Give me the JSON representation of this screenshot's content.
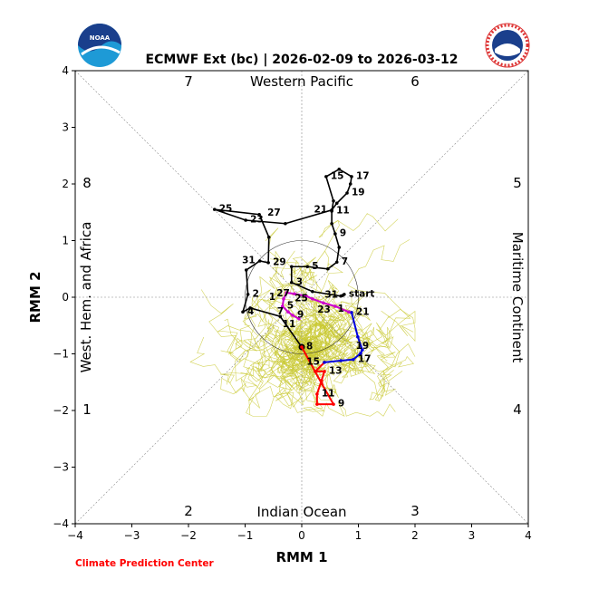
{
  "chart_data": {
    "type": "line",
    "title": "ECMWF Ext (bc) | 2026-02-09 to 2026-03-12",
    "xlabel": "RMM 1",
    "ylabel": "RMM 2",
    "xlim": [
      -4,
      4
    ],
    "ylim": [
      -4,
      4
    ],
    "xticks": [
      "−4",
      "−3",
      "−2",
      "−1",
      "0",
      "1",
      "2",
      "3",
      "4"
    ],
    "yticks": [
      "−4",
      "−3",
      "−2",
      "−1",
      "0",
      "1",
      "2",
      "3",
      "4"
    ],
    "phases": [
      "1",
      "2",
      "3",
      "4",
      "5",
      "6",
      "7",
      "8"
    ],
    "regions": {
      "top": "Western Pacific",
      "bottom": "Indian Ocean",
      "left": "West. Hem. and Africa",
      "right": "Maritime Continent"
    },
    "ensemble_members": 50,
    "colors": {
      "observed": "#000000",
      "week1": "#ff0000",
      "week2": "#0000dd",
      "week3": "#cc00cc",
      "ensemble": "#c8c830"
    },
    "series": [
      {
        "name": "observed",
        "points": [
          [
            0.75,
            0.05,
            "start"
          ],
          [
            0.72,
            0.03,
            "31"
          ],
          [
            0.69,
            0.02,
            "1"
          ],
          [
            0.19,
            0.1,
            ""
          ],
          [
            -0.18,
            0.26,
            "3"
          ],
          [
            -0.18,
            0.54,
            ""
          ],
          [
            0.1,
            0.54,
            "5"
          ],
          [
            0.46,
            0.5,
            ""
          ],
          [
            0.62,
            0.62,
            "7"
          ],
          [
            0.66,
            0.88,
            ""
          ],
          [
            0.59,
            1.12,
            "9"
          ],
          [
            0.53,
            1.3,
            ""
          ],
          [
            0.53,
            1.52,
            "11"
          ],
          [
            0.56,
            1.7,
            ""
          ],
          [
            0.43,
            2.13,
            "15"
          ],
          [
            0.66,
            2.26,
            ""
          ],
          [
            0.88,
            2.13,
            "17"
          ],
          [
            0.86,
            2.0,
            ""
          ],
          [
            0.8,
            1.84,
            "19"
          ],
          [
            0.62,
            1.66,
            ""
          ],
          [
            0.53,
            1.54,
            "21"
          ],
          [
            -0.29,
            1.3,
            ""
          ],
          [
            -0.99,
            1.36,
            "23"
          ],
          [
            -1.54,
            1.55,
            "25"
          ],
          [
            -0.75,
            1.46,
            "27"
          ],
          [
            -0.58,
            1.06,
            ""
          ],
          [
            -0.59,
            0.61,
            "29"
          ],
          [
            -0.74,
            0.64,
            "31"
          ],
          [
            -0.98,
            0.48,
            ""
          ],
          [
            -0.95,
            0.05,
            "2"
          ],
          [
            -1.04,
            -0.26,
            "4"
          ],
          [
            -0.91,
            -0.19,
            ""
          ],
          [
            -0.38,
            -0.34,
            ""
          ],
          [
            0.0,
            -0.88,
            "8"
          ]
        ]
      },
      {
        "name": "week1",
        "points": [
          [
            0.0,
            -0.88,
            ""
          ],
          [
            0.35,
            -1.52,
            ""
          ],
          [
            0.56,
            -1.89,
            "9"
          ],
          [
            0.27,
            -1.89,
            ""
          ],
          [
            0.27,
            -1.71,
            "11"
          ],
          [
            0.35,
            -1.47,
            ""
          ],
          [
            0.4,
            -1.31,
            "13"
          ],
          [
            0.24,
            -1.31,
            ""
          ],
          [
            0.4,
            -1.15,
            ""
          ]
        ]
      },
      {
        "name": "week2",
        "points": [
          [
            0.4,
            -1.15,
            "15"
          ],
          [
            0.69,
            -1.12,
            ""
          ],
          [
            0.91,
            -1.1,
            "17"
          ],
          [
            1.04,
            -0.99,
            ""
          ],
          [
            1.07,
            -0.93,
            "19"
          ],
          [
            0.99,
            -0.7,
            ""
          ],
          [
            0.88,
            -0.27,
            "21"
          ],
          [
            0.83,
            -0.26,
            ""
          ]
        ]
      },
      {
        "name": "week3",
        "points": [
          [
            0.83,
            -0.26,
            ""
          ],
          [
            0.59,
            -0.16,
            "23"
          ],
          [
            0.38,
            -0.1,
            ""
          ],
          [
            0.19,
            -0.03,
            "25"
          ],
          [
            0.08,
            0.02,
            ""
          ],
          [
            -0.13,
            0.06,
            "27"
          ],
          [
            -0.27,
            0.08,
            ""
          ],
          [
            -0.32,
            -0.03,
            "1"
          ],
          [
            -0.34,
            -0.16,
            "5"
          ],
          [
            -0.24,
            -0.26,
            "7"
          ],
          [
            -0.16,
            -0.32,
            "9"
          ],
          [
            -0.05,
            -0.38,
            "11"
          ]
        ]
      }
    ]
  },
  "footer": {
    "credit": "Climate Prediction Center"
  },
  "logos": {
    "left": "NOAA",
    "right": "NATIONAL WEATHER SERVICE"
  }
}
